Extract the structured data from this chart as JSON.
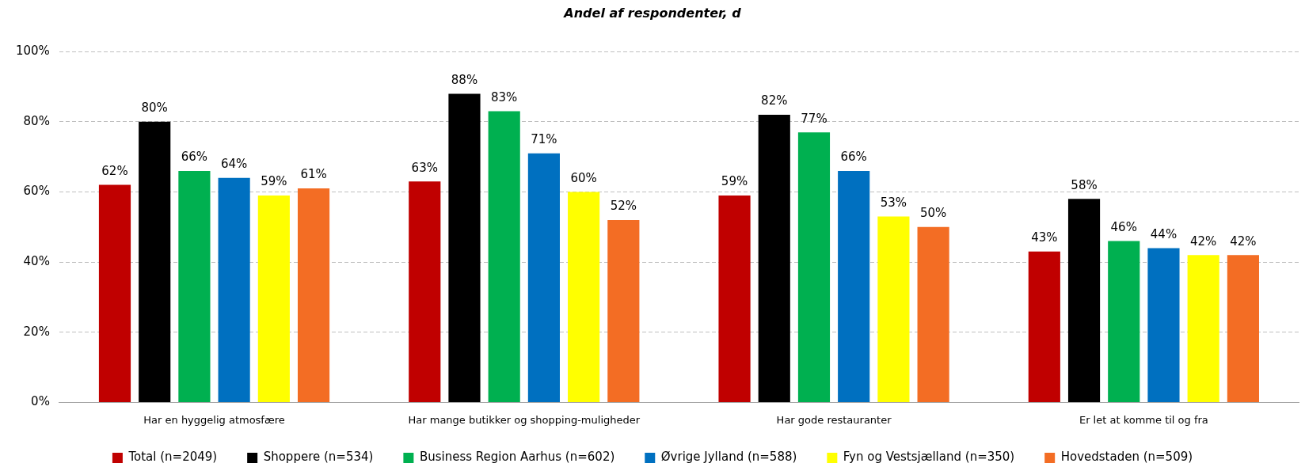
{
  "chart_data": {
    "type": "bar",
    "title": "Andel af respondenter, d",
    "categories": [
      "Har en hyggelig atmosfære",
      "Har mange butikker og shopping-muligheder",
      "Har gode restauranter",
      "Er let at komme til og fra"
    ],
    "series": [
      {
        "name": "Total (n=2049)",
        "color": "#c00000",
        "values": [
          62,
          63,
          59,
          43
        ],
        "value_labels": [
          "62%",
          "63%",
          "59%",
          "43%"
        ]
      },
      {
        "name": "Shoppere (n=534)",
        "color": "#000000",
        "values": [
          80,
          88,
          82,
          58
        ],
        "value_labels": [
          "80%",
          "88%",
          "82%",
          "58%"
        ]
      },
      {
        "name": "Business Region Aarhus (n=602)",
        "color": "#00b050",
        "values": [
          66,
          83,
          77,
          46
        ],
        "value_labels": [
          "66%",
          "83%",
          "77%",
          "46%"
        ]
      },
      {
        "name": "Øvrige Jylland (n=588)",
        "color": "#0070c0",
        "values": [
          64,
          71,
          66,
          44
        ],
        "value_labels": [
          "64%",
          "71%",
          "66%",
          "44%"
        ]
      },
      {
        "name": "Fyn og Vestsjælland (n=350)",
        "color": "#ffff00",
        "values": [
          59,
          60,
          53,
          42
        ],
        "value_labels": [
          "59%",
          "60%",
          "53%",
          "42%"
        ]
      },
      {
        "name": "Hovedstaden (n=509)",
        "color": "#f36d24",
        "values": [
          61,
          52,
          50,
          42
        ],
        "value_labels": [
          "61%",
          "52%",
          "50%",
          "42%"
        ]
      }
    ],
    "ylim": [
      0,
      100
    ],
    "yticks": [
      {
        "value": 0,
        "label": "0%"
      },
      {
        "value": 20,
        "label": "20%"
      },
      {
        "value": 40,
        "label": "40%"
      },
      {
        "value": 60,
        "label": "60%"
      },
      {
        "value": 80,
        "label": "80%"
      },
      {
        "value": 100,
        "label": "100%"
      }
    ],
    "grid": "y",
    "legend": "bottom"
  }
}
